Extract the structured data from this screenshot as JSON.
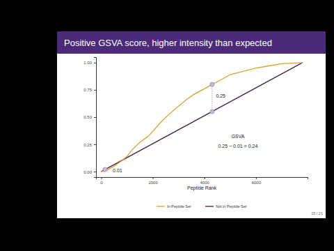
{
  "chart_data": {
    "type": "line",
    "title": "Positive GSVA score, higher intensity than expected",
    "x_label": "Peptide Rank",
    "page": "15 / 21",
    "xlim": [
      -200,
      8000
    ],
    "ylim": [
      -0.05,
      1.05
    ],
    "xticks": [
      0,
      2000,
      4000,
      6000
    ],
    "yticks": [
      {
        "value": 0,
        "label": "0.00"
      },
      {
        "value": 0.25,
        "label": "0.25"
      },
      {
        "value": 0.5,
        "label": "0.50"
      },
      {
        "value": 0.75,
        "label": "0.75"
      },
      {
        "value": 1,
        "label": "1.00"
      }
    ],
    "legend": "bottom",
    "series": [
      {
        "name": "In Peptide Set",
        "color": "#dda032",
        "x": [
          0,
          200,
          500,
          800,
          1000,
          1200,
          1500,
          1800,
          2000,
          2300,
          2600,
          3000,
          3300,
          3600,
          4000,
          4300,
          4700,
          5000,
          5500,
          6000,
          6500,
          7000,
          7800
        ],
        "values": [
          0,
          0.01,
          0.05,
          0.1,
          0.14,
          0.2,
          0.27,
          0.32,
          0.37,
          0.45,
          0.52,
          0.6,
          0.66,
          0.71,
          0.76,
          0.8,
          0.85,
          0.89,
          0.92,
          0.95,
          0.97,
          0.99,
          1
        ]
      },
      {
        "name": "Not in Peptide Set",
        "color": "#3f1f47",
        "x": [
          0,
          7800
        ],
        "values": [
          0,
          1
        ]
      }
    ],
    "points": {
      "x": [
        150,
        4300,
        4300
      ],
      "values": [
        0.02,
        0.8,
        0.55
      ]
    },
    "annotations": [
      {
        "text": "0.25",
        "x": 4450,
        "y": 0.68
      },
      {
        "text": "0.01",
        "x": 450,
        "y": -0.005
      },
      {
        "text": "GSVA",
        "x": 5300,
        "y": 0.31
      },
      {
        "text": "0.25 − 0.01 = 0.24",
        "x": 5300,
        "y": 0.22
      }
    ]
  }
}
